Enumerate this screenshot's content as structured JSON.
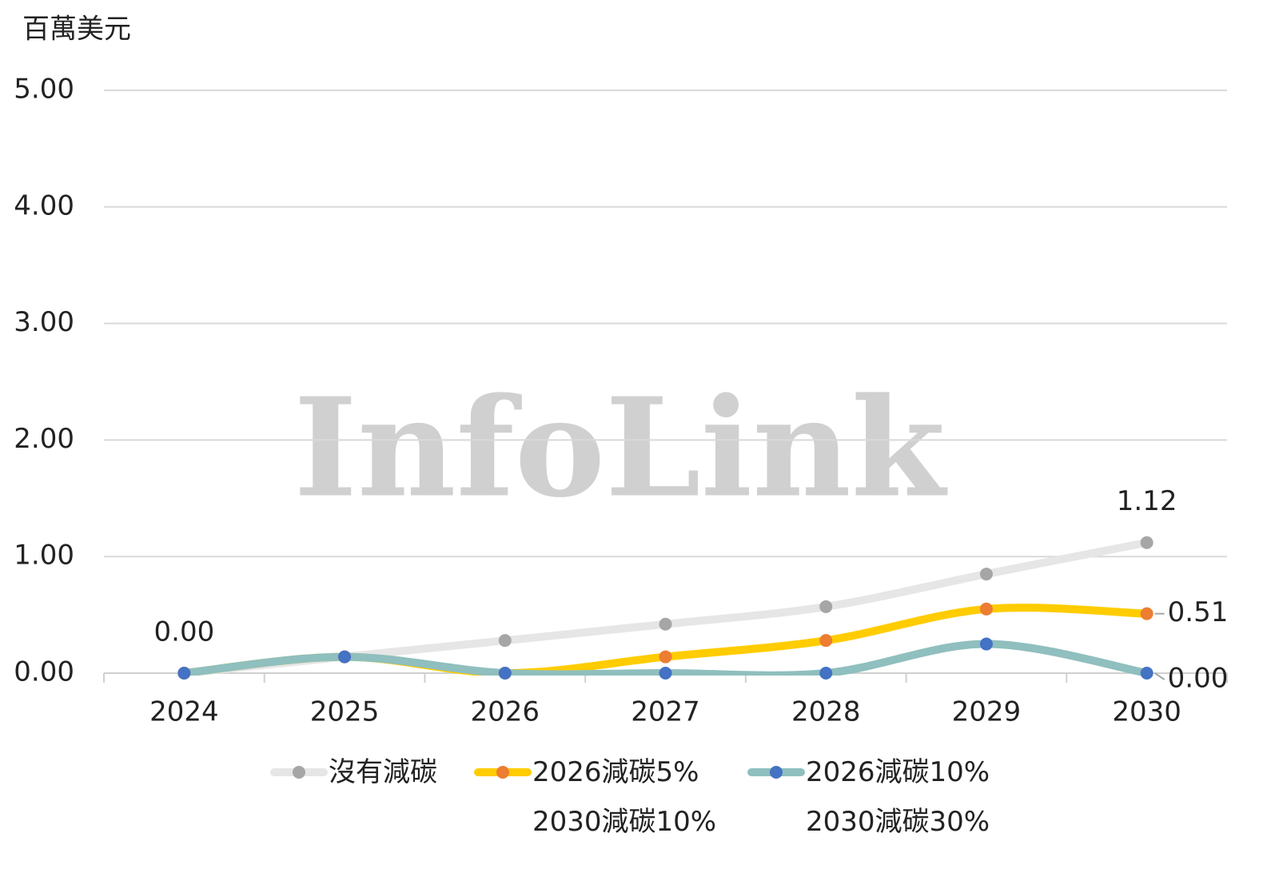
{
  "chart_data": {
    "type": "line",
    "y_axis_title": "百萬美元",
    "watermark": "InfoLink",
    "categories": [
      "2024",
      "2025",
      "2026",
      "2027",
      "2028",
      "2029",
      "2030"
    ],
    "ylim": [
      0,
      5
    ],
    "yticks": [
      {
        "value": 0,
        "label": "0.00"
      },
      {
        "value": 1,
        "label": "1.00"
      },
      {
        "value": 2,
        "label": "2.00"
      },
      {
        "value": 3,
        "label": "3.00"
      },
      {
        "value": 4,
        "label": "4.00"
      },
      {
        "value": 5,
        "label": "5.00"
      }
    ],
    "grid": true,
    "smooth": true,
    "series": [
      {
        "name": "沒有減碳",
        "color": "#e6e6e6",
        "marker_color": "#a6a6a6",
        "values": [
          0,
          0.14,
          0.28,
          0.42,
          0.57,
          0.85,
          1.12
        ],
        "value_labels": [
          "0.00",
          null,
          null,
          null,
          null,
          null,
          "1.12"
        ]
      },
      {
        "name": "2026減碳5%\n2030減碳10%",
        "color": "#ffcc00",
        "marker_color": "#ed7d31",
        "values": [
          0,
          0.14,
          0,
          0.14,
          0.28,
          0.55,
          0.51
        ],
        "value_labels": [
          null,
          null,
          null,
          null,
          null,
          null,
          "0.51"
        ]
      },
      {
        "name": "2026減碳10%\n2030減碳30%",
        "color": "#8fbfbe",
        "marker_color": "#4472c4",
        "values": [
          0,
          0.14,
          0,
          0,
          0,
          0.25,
          0
        ],
        "value_labels": [
          null,
          null,
          null,
          null,
          null,
          null,
          "0.00"
        ]
      }
    ]
  }
}
